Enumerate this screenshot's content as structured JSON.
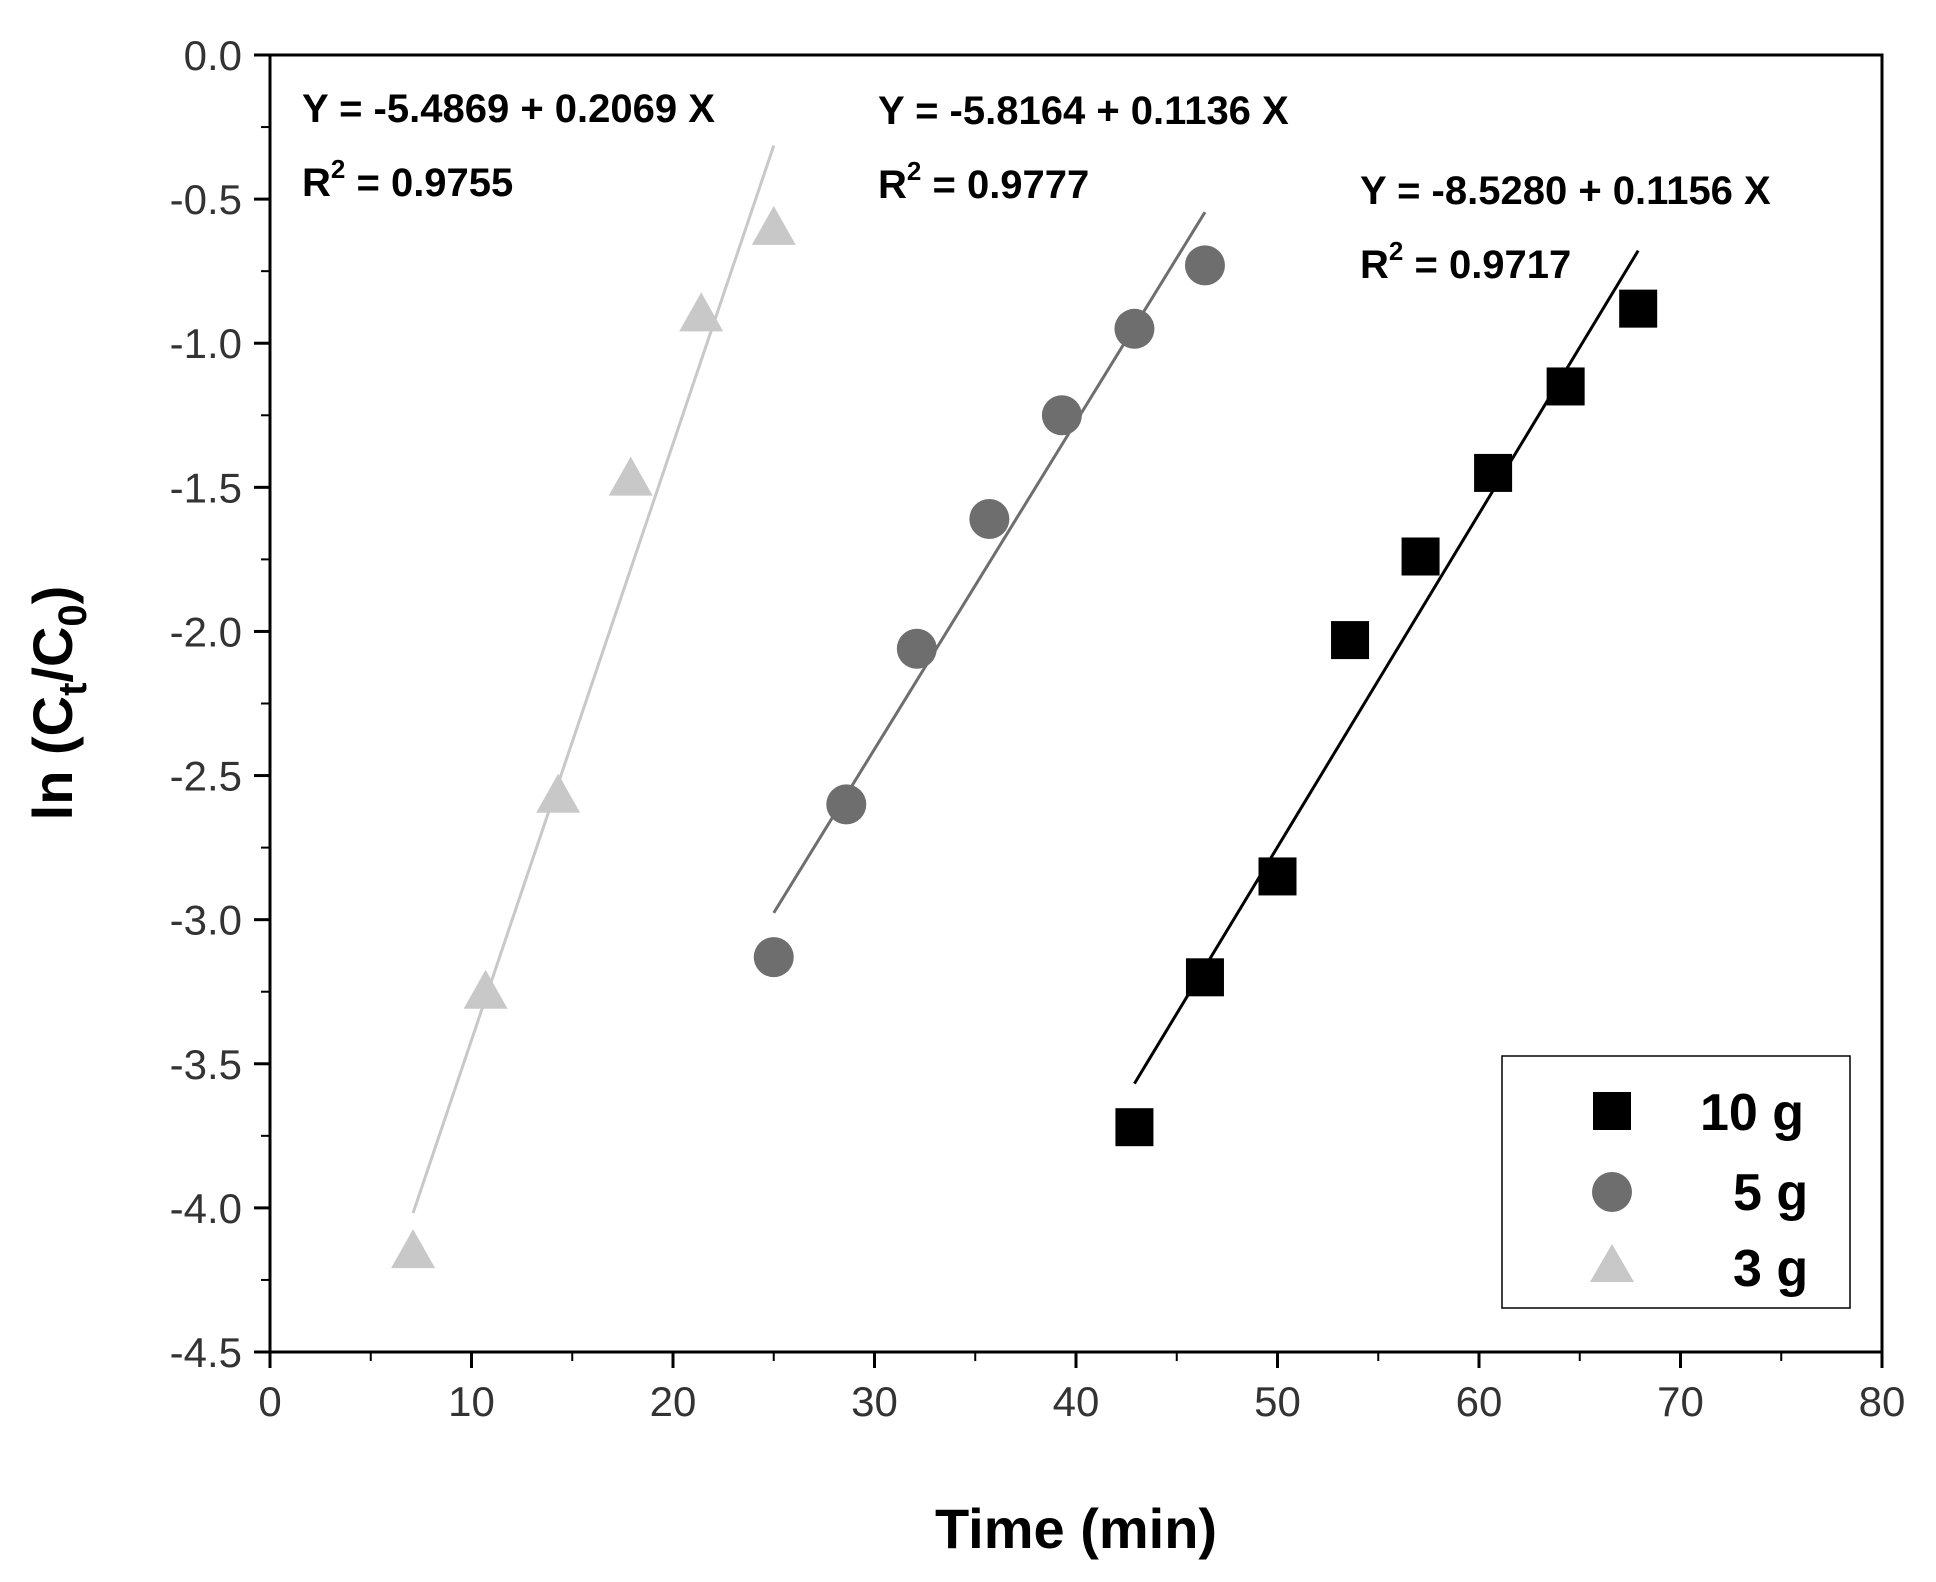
{
  "chart_data": {
    "type": "scatter",
    "xlabel": "Time (min)",
    "ylabel": {
      "prefix": "ln (C",
      "sub1": "t",
      "mid": "/C",
      "sub2": "0",
      "suffix": ")"
    },
    "xlim": [
      0,
      80
    ],
    "ylim": [
      -4.5,
      0.0
    ],
    "x_ticks": [
      0,
      10,
      20,
      30,
      40,
      50,
      60,
      70,
      80
    ],
    "x_tick_labels": [
      "0",
      "10",
      "20",
      "30",
      "40",
      "50",
      "60",
      "70",
      "80"
    ],
    "y_ticks": [
      0.0,
      -0.5,
      -1.0,
      -1.5,
      -2.0,
      -2.5,
      -3.0,
      -3.5,
      -4.0,
      -4.5
    ],
    "y_tick_labels": [
      "0.0",
      "-0.5",
      "-1.0",
      "-1.5",
      "-2.0",
      "-2.5",
      "-3.0",
      "-3.5",
      "-4.0",
      "-4.5"
    ],
    "legend_position": "bottom-right",
    "series": [
      {
        "name": "10 g",
        "marker": "square",
        "color": "#000000",
        "x": [
          42.9,
          46.4,
          50.0,
          53.6,
          57.1,
          60.7,
          64.3,
          67.9
        ],
        "y": [
          -3.72,
          -3.2,
          -2.85,
          -2.03,
          -1.74,
          -1.45,
          -1.15,
          -0.88
        ],
        "fit": {
          "intercept": -8.528,
          "slope": 0.1156,
          "x_range": [
            42.9,
            67.9
          ]
        },
        "equation": {
          "y_label": "Y = -8.5280 + 0.1156 X",
          "r_prefix": "R",
          "r_sup": "2",
          "r_value": " = 0.9717"
        }
      },
      {
        "name": "5 g",
        "marker": "circle",
        "color": "#6e6e6e",
        "x": [
          25.0,
          28.6,
          32.1,
          35.7,
          39.3,
          42.9,
          46.4
        ],
        "y": [
          -3.13,
          -2.6,
          -2.06,
          -1.61,
          -1.25,
          -0.95,
          -0.73
        ],
        "fit": {
          "intercept": -5.8164,
          "slope": 0.1136,
          "x_range": [
            25.0,
            46.4
          ]
        },
        "equation": {
          "y_label": "Y = -5.8164 + 0.1136 X",
          "r_prefix": "R",
          "r_sup": "2",
          "r_value": " = 0.9777"
        }
      },
      {
        "name": "3 g",
        "marker": "triangle",
        "color": "#c8c8c8",
        "x": [
          7.1,
          10.7,
          14.3,
          17.9,
          21.4,
          25.0
        ],
        "y": [
          -4.15,
          -3.25,
          -2.57,
          -1.47,
          -0.9,
          -0.6
        ],
        "fit": {
          "intercept": -5.4869,
          "slope": 0.2069,
          "x_range": [
            7.1,
            25.0
          ]
        },
        "equation": {
          "y_label": "Y = -5.4869 + 0.2069 X",
          "r_prefix": "R",
          "r_sup": "2",
          "r_value": " = 0.9755"
        }
      }
    ]
  }
}
